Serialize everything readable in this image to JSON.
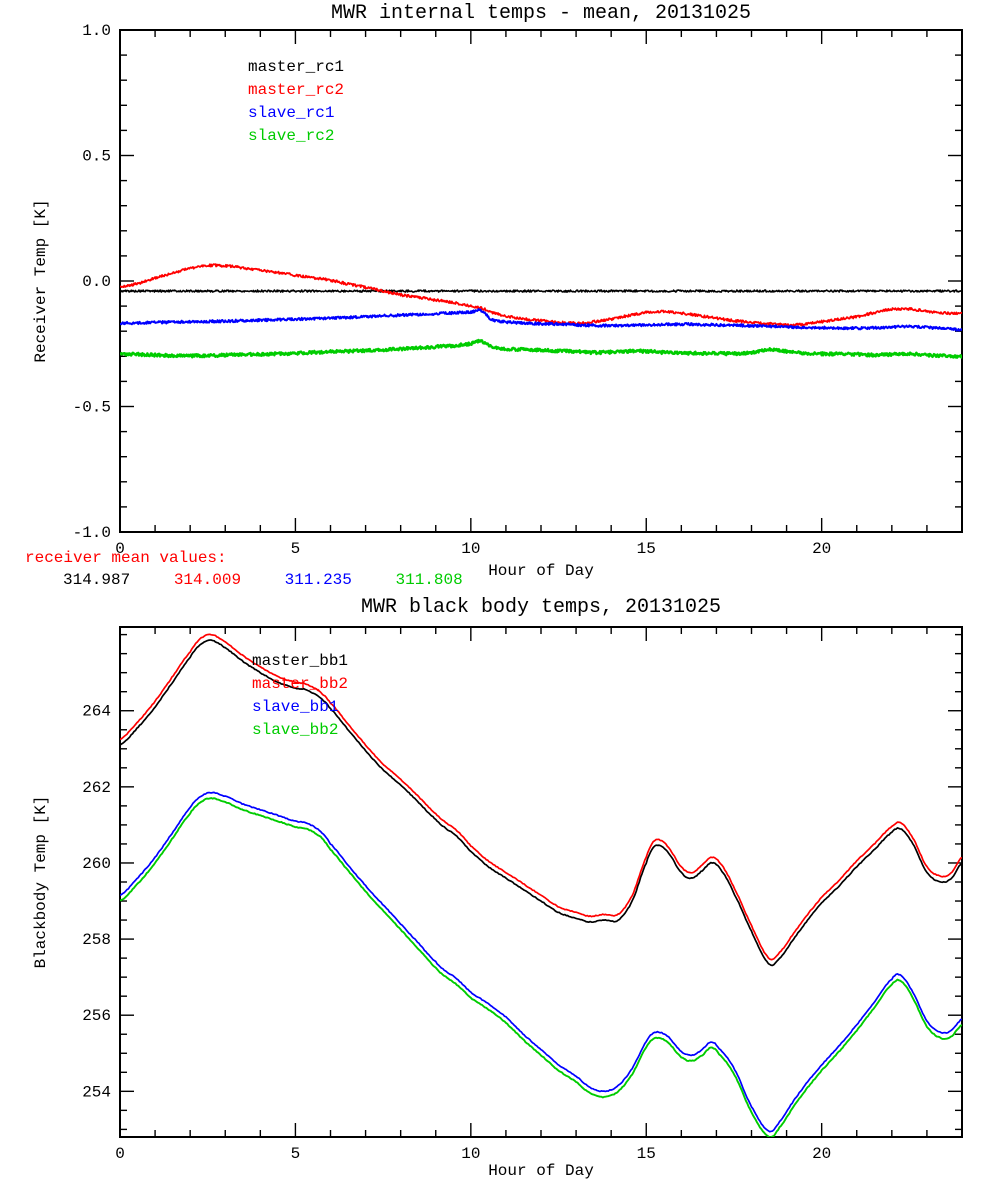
{
  "page": {
    "background": "#ffffff"
  },
  "footer": {
    "label": "receiver mean values:",
    "label_color": "#ff0000",
    "values": [
      {
        "text": "314.987",
        "color": "#000000"
      },
      {
        "text": "314.009",
        "color": "#ff0000"
      },
      {
        "text": "311.235",
        "color": "#0000ff"
      },
      {
        "text": "311.808",
        "color": "#00cc00"
      }
    ]
  },
  "chart_data": [
    {
      "type": "line",
      "title": "MWR internal temps - mean, 20131025",
      "xlabel": "Hour of Day",
      "ylabel": "Receiver Temp [K]",
      "xlim": [
        0,
        24
      ],
      "ylim": [
        -1.0,
        1.0
      ],
      "xticks": [
        0,
        5,
        10,
        15,
        20
      ],
      "xtick_labels": [
        "0",
        "5",
        "10",
        "15",
        "20"
      ],
      "xminor": 1,
      "yticks": [
        -1.0,
        -0.5,
        0.0,
        0.5,
        1.0
      ],
      "ytick_labels": [
        "-1.0",
        "-0.5",
        "0.0",
        "0.5",
        "1.0"
      ],
      "yminor": 0.1,
      "grid": false,
      "legend_position": "upper-left-inside",
      "legend": [
        {
          "name": "master_rc1",
          "color": "#000000"
        },
        {
          "name": "master_rc2",
          "color": "#ff0000"
        },
        {
          "name": "slave_rc1",
          "color": "#0000ff"
        },
        {
          "name": "slave_rc2",
          "color": "#00cc00"
        }
      ],
      "x": [
        0,
        0.5,
        1,
        1.5,
        2,
        2.5,
        3,
        3.5,
        4,
        4.5,
        5,
        5.5,
        6,
        6.5,
        7,
        7.5,
        8,
        8.5,
        9,
        9.5,
        10,
        10.3,
        10.6,
        11,
        11.5,
        12,
        12.5,
        13,
        13.5,
        14,
        14.5,
        15,
        15.5,
        16,
        16.5,
        17,
        17.5,
        18,
        18.5,
        19,
        19.5,
        20,
        20.5,
        21,
        21.5,
        22,
        22.5,
        23,
        23.5,
        24
      ],
      "series": [
        {
          "name": "master_rc1",
          "color": "#000000",
          "noise": 0.004,
          "width": 1.6,
          "y": [
            -0.04,
            -0.04,
            -0.04,
            -0.04,
            -0.04,
            -0.04,
            -0.04,
            -0.04,
            -0.04,
            -0.04,
            -0.04,
            -0.04,
            -0.04,
            -0.04,
            -0.04,
            -0.04,
            -0.04,
            -0.04,
            -0.04,
            -0.04,
            -0.04,
            -0.04,
            -0.04,
            -0.04,
            -0.04,
            -0.04,
            -0.04,
            -0.04,
            -0.04,
            -0.04,
            -0.04,
            -0.04,
            -0.04,
            -0.04,
            -0.04,
            -0.04,
            -0.04,
            -0.04,
            -0.04,
            -0.04,
            -0.04,
            -0.04,
            -0.04,
            -0.04,
            -0.04,
            -0.04,
            -0.04,
            -0.04,
            -0.04,
            -0.04
          ]
        },
        {
          "name": "master_rc2",
          "color": "#ff0000",
          "noise": 0.005,
          "width": 1.8,
          "y": [
            -0.025,
            -0.01,
            0.012,
            0.032,
            0.05,
            0.062,
            0.06,
            0.052,
            0.043,
            0.033,
            0.023,
            0.013,
            0.003,
            -0.012,
            -0.025,
            -0.04,
            -0.055,
            -0.065,
            -0.076,
            -0.086,
            -0.1,
            -0.108,
            -0.125,
            -0.14,
            -0.15,
            -0.158,
            -0.165,
            -0.168,
            -0.162,
            -0.152,
            -0.138,
            -0.125,
            -0.122,
            -0.128,
            -0.138,
            -0.148,
            -0.158,
            -0.165,
            -0.17,
            -0.175,
            -0.172,
            -0.162,
            -0.152,
            -0.142,
            -0.126,
            -0.112,
            -0.112,
            -0.12,
            -0.128,
            -0.13
          ]
        },
        {
          "name": "slave_rc1",
          "color": "#0000ff",
          "noise": 0.005,
          "width": 2.0,
          "y": [
            -0.168,
            -0.167,
            -0.165,
            -0.164,
            -0.162,
            -0.161,
            -0.16,
            -0.158,
            -0.156,
            -0.154,
            -0.152,
            -0.15,
            -0.148,
            -0.145,
            -0.142,
            -0.139,
            -0.136,
            -0.133,
            -0.13,
            -0.127,
            -0.123,
            -0.118,
            -0.155,
            -0.163,
            -0.168,
            -0.17,
            -0.172,
            -0.175,
            -0.177,
            -0.178,
            -0.177,
            -0.175,
            -0.173,
            -0.172,
            -0.173,
            -0.175,
            -0.177,
            -0.178,
            -0.18,
            -0.183,
            -0.185,
            -0.186,
            -0.187,
            -0.188,
            -0.187,
            -0.183,
            -0.182,
            -0.185,
            -0.19,
            -0.195
          ]
        },
        {
          "name": "slave_rc2",
          "color": "#00cc00",
          "noise": 0.006,
          "width": 2.5,
          "y": [
            -0.29,
            -0.292,
            -0.295,
            -0.297,
            -0.298,
            -0.297,
            -0.295,
            -0.293,
            -0.292,
            -0.29,
            -0.288,
            -0.285,
            -0.282,
            -0.28,
            -0.277,
            -0.274,
            -0.27,
            -0.266,
            -0.262,
            -0.258,
            -0.25,
            -0.24,
            -0.262,
            -0.27,
            -0.273,
            -0.276,
            -0.278,
            -0.28,
            -0.285,
            -0.283,
            -0.28,
            -0.28,
            -0.285,
            -0.287,
            -0.288,
            -0.289,
            -0.289,
            -0.285,
            -0.272,
            -0.28,
            -0.288,
            -0.29,
            -0.291,
            -0.292,
            -0.295,
            -0.292,
            -0.29,
            -0.295,
            -0.298,
            -0.3
          ]
        }
      ]
    },
    {
      "type": "line",
      "title": "MWR black body temps, 20131025",
      "xlabel": "Hour of Day",
      "ylabel": "Blackbody Temp [K]",
      "xlim": [
        0,
        24
      ],
      "ylim": [
        252.8,
        266.2
      ],
      "xticks": [
        0,
        5,
        10,
        15,
        20
      ],
      "xtick_labels": [
        "0",
        "5",
        "10",
        "15",
        "20"
      ],
      "xminor": 1,
      "yticks": [
        254,
        256,
        258,
        260,
        262,
        264
      ],
      "ytick_labels": [
        "254",
        "256",
        "258",
        "260",
        "262",
        "264"
      ],
      "yminor": 0.5,
      "grid": false,
      "legend_position": "upper-left-inside",
      "legend": [
        {
          "name": "master_bb1",
          "color": "#000000"
        },
        {
          "name": "master_bb2",
          "color": "#ff0000"
        },
        {
          "name": "slave_bb1",
          "color": "#0000ff"
        },
        {
          "name": "slave_bb2",
          "color": "#00cc00"
        }
      ],
      "x": [
        0,
        0.5,
        1,
        1.5,
        2,
        2.3,
        2.6,
        3,
        3.5,
        4,
        4.5,
        5,
        5.3,
        5.7,
        6,
        6.5,
        7,
        7.5,
        8,
        8.5,
        9,
        9.3,
        9.6,
        10,
        10.5,
        11,
        11.5,
        12,
        12.5,
        13,
        13.4,
        13.8,
        14.2,
        14.6,
        15,
        15.25,
        15.6,
        16,
        16.3,
        16.6,
        16.85,
        17.1,
        17.5,
        18,
        18.5,
        18.8,
        19.2,
        19.6,
        20,
        20.5,
        21,
        21.5,
        22,
        22.25,
        22.6,
        23,
        23.4,
        23.7,
        24
      ],
      "series": [
        {
          "name": "master_bb1",
          "color": "#000000",
          "noise": 0.012,
          "width": 1.7,
          "y": [
            263.1,
            263.55,
            264.1,
            264.75,
            265.4,
            265.75,
            265.85,
            265.65,
            265.3,
            265.0,
            264.75,
            264.6,
            264.55,
            264.35,
            264.05,
            263.5,
            262.95,
            262.45,
            262.05,
            261.6,
            261.15,
            260.9,
            260.7,
            260.3,
            259.9,
            259.6,
            259.3,
            259.0,
            258.7,
            258.55,
            258.45,
            258.5,
            258.5,
            259.0,
            260.0,
            260.45,
            260.3,
            259.75,
            259.6,
            259.8,
            260.0,
            259.85,
            259.2,
            258.2,
            257.35,
            257.5,
            258.0,
            258.5,
            258.95,
            259.4,
            259.9,
            260.35,
            260.8,
            260.9,
            260.5,
            259.75,
            259.5,
            259.6,
            260.0
          ]
        },
        {
          "name": "master_bb2",
          "color": "#ff0000",
          "noise": 0.012,
          "width": 1.7,
          "y": [
            263.25,
            263.7,
            264.25,
            264.9,
            265.55,
            265.9,
            266.0,
            265.8,
            265.45,
            265.15,
            264.9,
            264.75,
            264.7,
            264.5,
            264.2,
            263.65,
            263.1,
            262.6,
            262.2,
            261.75,
            261.3,
            261.05,
            260.85,
            260.45,
            260.05,
            259.75,
            259.45,
            259.15,
            258.85,
            258.7,
            258.6,
            258.65,
            258.65,
            259.15,
            260.15,
            260.6,
            260.45,
            259.9,
            259.75,
            259.95,
            260.15,
            260.0,
            259.35,
            258.35,
            257.5,
            257.65,
            258.15,
            258.65,
            259.1,
            259.55,
            260.05,
            260.5,
            260.95,
            261.05,
            260.65,
            259.9,
            259.65,
            259.75,
            260.15
          ]
        },
        {
          "name": "slave_bb1",
          "color": "#0000ff",
          "noise": 0.012,
          "width": 1.7,
          "y": [
            259.15,
            259.6,
            260.15,
            260.8,
            261.45,
            261.75,
            261.85,
            261.75,
            261.55,
            261.4,
            261.25,
            261.1,
            261.05,
            260.85,
            260.5,
            259.95,
            259.4,
            258.9,
            258.4,
            257.9,
            257.4,
            257.15,
            256.95,
            256.6,
            256.3,
            255.95,
            255.5,
            255.1,
            254.7,
            254.4,
            254.1,
            254.0,
            254.15,
            254.6,
            255.3,
            255.55,
            255.45,
            255.05,
            254.95,
            255.1,
            255.3,
            255.1,
            254.6,
            253.6,
            252.95,
            253.2,
            253.75,
            254.25,
            254.7,
            255.2,
            255.75,
            256.35,
            256.95,
            257.05,
            256.6,
            255.85,
            255.55,
            255.6,
            255.9
          ]
        },
        {
          "name": "slave_bb2",
          "color": "#00cc00",
          "noise": 0.012,
          "width": 1.9,
          "y": [
            259.0,
            259.45,
            260.0,
            260.65,
            261.3,
            261.6,
            261.7,
            261.6,
            261.4,
            261.25,
            261.1,
            260.95,
            260.9,
            260.7,
            260.35,
            259.8,
            259.25,
            258.75,
            258.25,
            257.75,
            257.25,
            257.0,
            256.8,
            256.45,
            256.15,
            255.8,
            255.35,
            254.95,
            254.55,
            254.25,
            253.95,
            253.85,
            254.0,
            254.45,
            255.15,
            255.4,
            255.3,
            254.9,
            254.8,
            254.95,
            255.15,
            254.95,
            254.45,
            253.45,
            252.8,
            253.05,
            253.6,
            254.1,
            254.55,
            255.05,
            255.6,
            256.2,
            256.8,
            256.9,
            256.45,
            255.7,
            255.4,
            255.45,
            255.75
          ]
        }
      ]
    }
  ]
}
